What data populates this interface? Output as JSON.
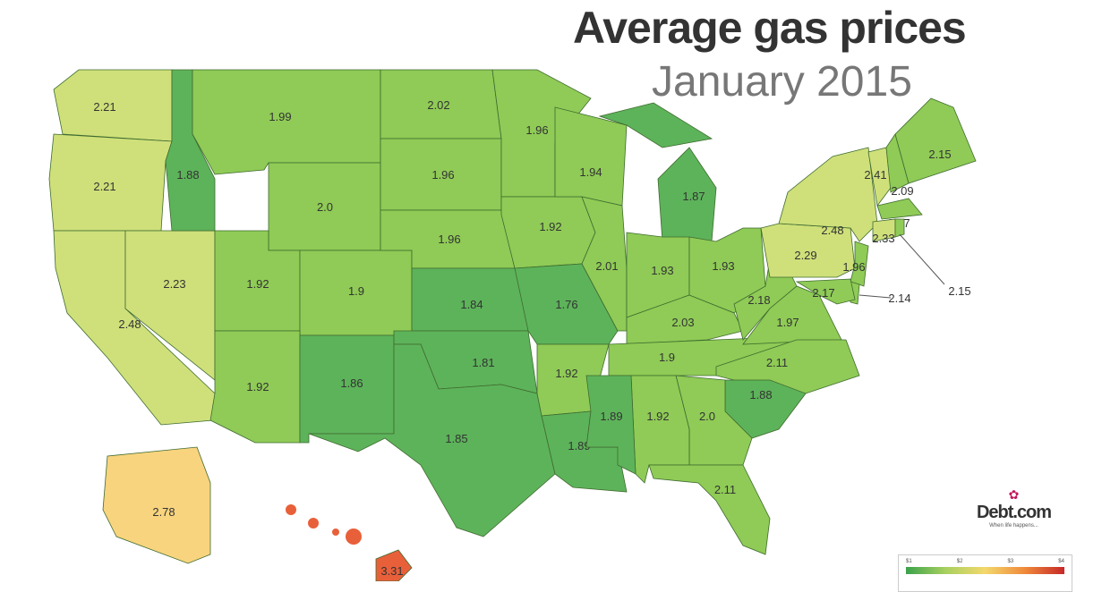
{
  "title": "Average gas prices",
  "subtitle": "January 2015",
  "logo": {
    "name": "Debt.com",
    "tagline": "When life happens..."
  },
  "legend": {
    "ticks": [
      "$1",
      "$2",
      "$3",
      "$4"
    ],
    "colors": [
      "#3aa24a",
      "#a8d060",
      "#f3d86c",
      "#f08a3b",
      "#c62828"
    ]
  },
  "states": [
    {
      "id": "WA",
      "value": "2.21"
    },
    {
      "id": "OR",
      "value": "2.21"
    },
    {
      "id": "CA",
      "value": "2.48"
    },
    {
      "id": "NV",
      "value": "2.23"
    },
    {
      "id": "ID",
      "value": "1.88"
    },
    {
      "id": "MT",
      "value": "1.99"
    },
    {
      "id": "WY",
      "value": "2.0"
    },
    {
      "id": "UT",
      "value": "1.92"
    },
    {
      "id": "CO",
      "value": "1.9"
    },
    {
      "id": "AZ",
      "value": "1.92"
    },
    {
      "id": "NM",
      "value": "1.86"
    },
    {
      "id": "ND",
      "value": "2.02"
    },
    {
      "id": "SD",
      "value": "1.96"
    },
    {
      "id": "NE",
      "value": "1.96"
    },
    {
      "id": "KS",
      "value": "1.84"
    },
    {
      "id": "OK",
      "value": "1.81"
    },
    {
      "id": "TX",
      "value": "1.85"
    },
    {
      "id": "MN",
      "value": "1.96"
    },
    {
      "id": "IA",
      "value": "1.92"
    },
    {
      "id": "MO",
      "value": "1.76"
    },
    {
      "id": "AR",
      "value": "1.92"
    },
    {
      "id": "LA",
      "value": "1.89"
    },
    {
      "id": "WI",
      "value": "1.94"
    },
    {
      "id": "IL",
      "value": "2.01"
    },
    {
      "id": "MI",
      "value": "1.87"
    },
    {
      "id": "IN",
      "value": "1.93"
    },
    {
      "id": "OH",
      "value": "1.93"
    },
    {
      "id": "KY",
      "value": "2.03"
    },
    {
      "id": "TN",
      "value": "1.9"
    },
    {
      "id": "WV",
      "value": "2.18"
    },
    {
      "id": "VA",
      "value": "1.97"
    },
    {
      "id": "NC",
      "value": "2.11"
    },
    {
      "id": "SC",
      "value": "1.88"
    },
    {
      "id": "GA",
      "value": "2.0"
    },
    {
      "id": "AL",
      "value": "1.92"
    },
    {
      "id": "MS",
      "value": "1.89"
    },
    {
      "id": "FL",
      "value": "2.11"
    },
    {
      "id": "PA",
      "value": "2.29"
    },
    {
      "id": "NY",
      "value": "2.48"
    },
    {
      "id": "VT",
      "value": "2.41"
    },
    {
      "id": "NH",
      "value": "2.09"
    },
    {
      "id": "ME",
      "value": "2.15"
    },
    {
      "id": "MA",
      "value": "2.17"
    },
    {
      "id": "CT",
      "value": "2.33"
    },
    {
      "id": "RI",
      "value": "2.15"
    },
    {
      "id": "NJ",
      "value": "1.96"
    },
    {
      "id": "DE",
      "value": "2.14"
    },
    {
      "id": "MD",
      "value": "2.17"
    },
    {
      "id": "AK",
      "value": "2.78"
    },
    {
      "id": "HI",
      "value": "3.31"
    }
  ]
}
